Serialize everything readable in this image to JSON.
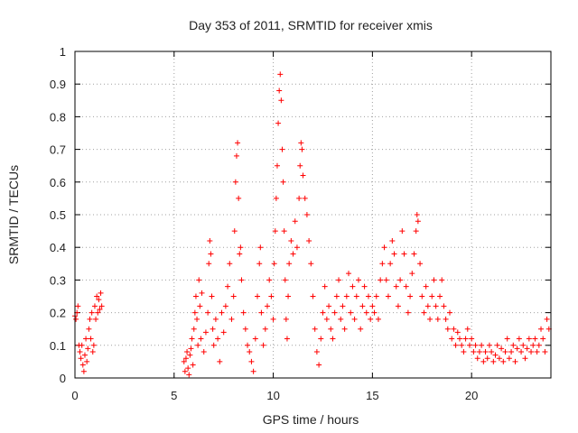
{
  "chart_data": {
    "type": "scatter",
    "title": "Day 353 of 2011, SRMTID for receiver xmis",
    "xlabel": "GPS time / hours",
    "ylabel": "SRMTID / TECUs",
    "xlim": [
      0,
      24
    ],
    "ylim": [
      0,
      1
    ],
    "x_ticks": [
      0,
      5,
      10,
      15,
      20
    ],
    "x_tick_labels": [
      "0",
      "5",
      "10",
      "15",
      "20"
    ],
    "y_ticks": [
      0,
      0.1,
      0.2,
      0.3,
      0.4,
      0.5,
      0.6,
      0.7,
      0.8,
      0.9,
      1
    ],
    "y_tick_labels": [
      "0",
      "0.1",
      "0.2",
      "0.3",
      "0.4",
      "0.5",
      "0.6",
      "0.7",
      "0.8",
      "0.9",
      "1"
    ],
    "grid": true,
    "marker": "+",
    "color": "#ff0000",
    "series": [
      {
        "name": "SRMTID",
        "points": [
          [
            0.0,
            0.19
          ],
          [
            0.05,
            0.18
          ],
          [
            0.1,
            0.2
          ],
          [
            0.15,
            0.22
          ],
          [
            0.2,
            0.1
          ],
          [
            0.25,
            0.08
          ],
          [
            0.3,
            0.06
          ],
          [
            0.35,
            0.1
          ],
          [
            0.4,
            0.04
          ],
          [
            0.45,
            0.02
          ],
          [
            0.5,
            0.07
          ],
          [
            0.55,
            0.12
          ],
          [
            0.6,
            0.05
          ],
          [
            0.65,
            0.09
          ],
          [
            0.7,
            0.15
          ],
          [
            0.75,
            0.18
          ],
          [
            0.8,
            0.12
          ],
          [
            0.85,
            0.2
          ],
          [
            0.9,
            0.08
          ],
          [
            0.95,
            0.1
          ],
          [
            1.0,
            0.22
          ],
          [
            1.05,
            0.18
          ],
          [
            1.1,
            0.25
          ],
          [
            1.15,
            0.2
          ],
          [
            1.2,
            0.24
          ],
          [
            1.25,
            0.21
          ],
          [
            1.3,
            0.26
          ],
          [
            1.35,
            0.22
          ],
          [
            5.5,
            0.05
          ],
          [
            5.55,
            0.02
          ],
          [
            5.6,
            0.06
          ],
          [
            5.65,
            0.08
          ],
          [
            5.7,
            0.03
          ],
          [
            5.75,
            0.01
          ],
          [
            5.8,
            0.07
          ],
          [
            5.85,
            0.09
          ],
          [
            5.9,
            0.12
          ],
          [
            5.95,
            0.04
          ],
          [
            6.0,
            0.15
          ],
          [
            6.05,
            0.2
          ],
          [
            6.1,
            0.25
          ],
          [
            6.15,
            0.18
          ],
          [
            6.2,
            0.1
          ],
          [
            6.25,
            0.3
          ],
          [
            6.3,
            0.22
          ],
          [
            6.35,
            0.12
          ],
          [
            6.4,
            0.26
          ],
          [
            6.5,
            0.08
          ],
          [
            6.6,
            0.14
          ],
          [
            6.7,
            0.2
          ],
          [
            6.75,
            0.35
          ],
          [
            6.8,
            0.42
          ],
          [
            6.85,
            0.38
          ],
          [
            6.9,
            0.25
          ],
          [
            6.95,
            0.15
          ],
          [
            7.0,
            0.1
          ],
          [
            7.1,
            0.18
          ],
          [
            7.2,
            0.12
          ],
          [
            7.3,
            0.05
          ],
          [
            7.4,
            0.2
          ],
          [
            7.5,
            0.14
          ],
          [
            7.6,
            0.22
          ],
          [
            7.7,
            0.28
          ],
          [
            7.8,
            0.35
          ],
          [
            7.9,
            0.18
          ],
          [
            8.0,
            0.25
          ],
          [
            8.05,
            0.45
          ],
          [
            8.1,
            0.6
          ],
          [
            8.15,
            0.68
          ],
          [
            8.2,
            0.72
          ],
          [
            8.25,
            0.55
          ],
          [
            8.3,
            0.38
          ],
          [
            8.35,
            0.4
          ],
          [
            8.4,
            0.3
          ],
          [
            8.5,
            0.2
          ],
          [
            8.6,
            0.15
          ],
          [
            8.7,
            0.1
          ],
          [
            8.8,
            0.08
          ],
          [
            8.9,
            0.05
          ],
          [
            9.0,
            0.02
          ],
          [
            9.1,
            0.12
          ],
          [
            9.2,
            0.25
          ],
          [
            9.3,
            0.35
          ],
          [
            9.35,
            0.4
          ],
          [
            9.4,
            0.2
          ],
          [
            9.5,
            0.1
          ],
          [
            9.6,
            0.15
          ],
          [
            9.7,
            0.22
          ],
          [
            9.8,
            0.3
          ],
          [
            9.9,
            0.25
          ],
          [
            10.0,
            0.18
          ],
          [
            10.05,
            0.35
          ],
          [
            10.1,
            0.45
          ],
          [
            10.15,
            0.55
          ],
          [
            10.2,
            0.65
          ],
          [
            10.25,
            0.78
          ],
          [
            10.3,
            0.88
          ],
          [
            10.35,
            0.93
          ],
          [
            10.4,
            0.85
          ],
          [
            10.45,
            0.7
          ],
          [
            10.5,
            0.6
          ],
          [
            10.55,
            0.45
          ],
          [
            10.6,
            0.3
          ],
          [
            10.65,
            0.18
          ],
          [
            10.7,
            0.12
          ],
          [
            10.75,
            0.25
          ],
          [
            10.8,
            0.35
          ],
          [
            10.9,
            0.42
          ],
          [
            11.0,
            0.38
          ],
          [
            11.1,
            0.48
          ],
          [
            11.2,
            0.4
          ],
          [
            11.3,
            0.55
          ],
          [
            11.35,
            0.65
          ],
          [
            11.4,
            0.72
          ],
          [
            11.45,
            0.7
          ],
          [
            11.5,
            0.62
          ],
          [
            11.6,
            0.55
          ],
          [
            11.7,
            0.5
          ],
          [
            11.8,
            0.42
          ],
          [
            11.9,
            0.35
          ],
          [
            12.0,
            0.25
          ],
          [
            12.1,
            0.15
          ],
          [
            12.2,
            0.08
          ],
          [
            12.3,
            0.04
          ],
          [
            12.4,
            0.12
          ],
          [
            12.5,
            0.2
          ],
          [
            12.6,
            0.28
          ],
          [
            12.7,
            0.18
          ],
          [
            12.8,
            0.22
          ],
          [
            12.9,
            0.15
          ],
          [
            13.0,
            0.12
          ],
          [
            13.1,
            0.2
          ],
          [
            13.2,
            0.25
          ],
          [
            13.3,
            0.3
          ],
          [
            13.4,
            0.18
          ],
          [
            13.5,
            0.22
          ],
          [
            13.6,
            0.15
          ],
          [
            13.7,
            0.25
          ],
          [
            13.8,
            0.32
          ],
          [
            13.9,
            0.2
          ],
          [
            14.0,
            0.28
          ],
          [
            14.1,
            0.18
          ],
          [
            14.2,
            0.25
          ],
          [
            14.3,
            0.3
          ],
          [
            14.4,
            0.15
          ],
          [
            14.5,
            0.22
          ],
          [
            14.6,
            0.28
          ],
          [
            14.7,
            0.2
          ],
          [
            14.8,
            0.25
          ],
          [
            14.9,
            0.18
          ],
          [
            15.0,
            0.22
          ],
          [
            15.1,
            0.2
          ],
          [
            15.2,
            0.25
          ],
          [
            15.3,
            0.18
          ],
          [
            15.4,
            0.3
          ],
          [
            15.5,
            0.35
          ],
          [
            15.6,
            0.4
          ],
          [
            15.7,
            0.3
          ],
          [
            15.8,
            0.25
          ],
          [
            15.9,
            0.35
          ],
          [
            16.0,
            0.42
          ],
          [
            16.1,
            0.38
          ],
          [
            16.2,
            0.28
          ],
          [
            16.3,
            0.22
          ],
          [
            16.4,
            0.3
          ],
          [
            16.5,
            0.45
          ],
          [
            16.6,
            0.38
          ],
          [
            16.7,
            0.28
          ],
          [
            16.8,
            0.2
          ],
          [
            16.9,
            0.25
          ],
          [
            17.0,
            0.32
          ],
          [
            17.1,
            0.38
          ],
          [
            17.2,
            0.45
          ],
          [
            17.25,
            0.5
          ],
          [
            17.3,
            0.48
          ],
          [
            17.4,
            0.35
          ],
          [
            17.5,
            0.25
          ],
          [
            17.6,
            0.2
          ],
          [
            17.7,
            0.28
          ],
          [
            17.8,
            0.22
          ],
          [
            17.9,
            0.18
          ],
          [
            18.0,
            0.25
          ],
          [
            18.1,
            0.3
          ],
          [
            18.2,
            0.22
          ],
          [
            18.3,
            0.18
          ],
          [
            18.4,
            0.25
          ],
          [
            18.5,
            0.3
          ],
          [
            18.6,
            0.22
          ],
          [
            18.7,
            0.18
          ],
          [
            18.8,
            0.15
          ],
          [
            18.9,
            0.2
          ],
          [
            19.0,
            0.12
          ],
          [
            19.1,
            0.15
          ],
          [
            19.2,
            0.1
          ],
          [
            19.3,
            0.14
          ],
          [
            19.4,
            0.12
          ],
          [
            19.5,
            0.1
          ],
          [
            19.6,
            0.08
          ],
          [
            19.7,
            0.12
          ],
          [
            19.8,
            0.15
          ],
          [
            19.9,
            0.1
          ],
          [
            20.0,
            0.12
          ],
          [
            20.1,
            0.08
          ],
          [
            20.2,
            0.1
          ],
          [
            20.3,
            0.06
          ],
          [
            20.4,
            0.08
          ],
          [
            20.5,
            0.1
          ],
          [
            20.6,
            0.05
          ],
          [
            20.7,
            0.08
          ],
          [
            20.8,
            0.06
          ],
          [
            20.9,
            0.1
          ],
          [
            21.0,
            0.08
          ],
          [
            21.1,
            0.05
          ],
          [
            21.2,
            0.07
          ],
          [
            21.3,
            0.1
          ],
          [
            21.4,
            0.06
          ],
          [
            21.5,
            0.09
          ],
          [
            21.6,
            0.05
          ],
          [
            21.7,
            0.08
          ],
          [
            21.8,
            0.12
          ],
          [
            21.9,
            0.06
          ],
          [
            22.0,
            0.08
          ],
          [
            22.1,
            0.1
          ],
          [
            22.2,
            0.05
          ],
          [
            22.3,
            0.09
          ],
          [
            22.4,
            0.12
          ],
          [
            22.5,
            0.08
          ],
          [
            22.6,
            0.1
          ],
          [
            22.7,
            0.06
          ],
          [
            22.8,
            0.09
          ],
          [
            22.9,
            0.12
          ],
          [
            23.0,
            0.08
          ],
          [
            23.1,
            0.1
          ],
          [
            23.2,
            0.12
          ],
          [
            23.3,
            0.08
          ],
          [
            23.4,
            0.1
          ],
          [
            23.5,
            0.15
          ],
          [
            23.6,
            0.12
          ],
          [
            23.7,
            0.08
          ],
          [
            23.8,
            0.18
          ],
          [
            23.9,
            0.15
          ]
        ]
      }
    ]
  }
}
